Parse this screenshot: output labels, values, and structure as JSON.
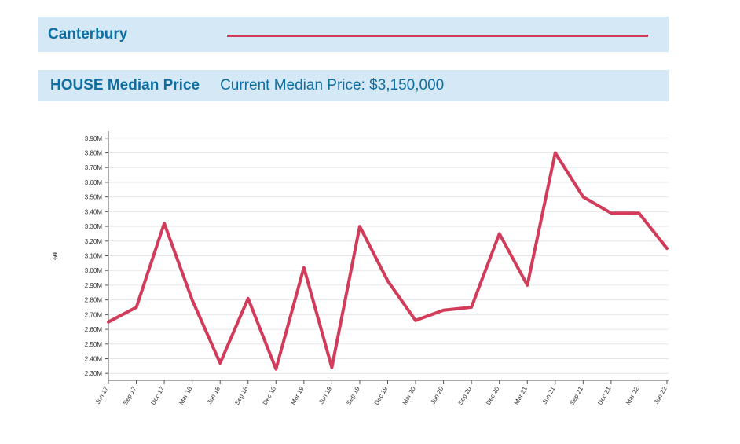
{
  "header": {
    "suburb": "Canterbury",
    "line_color": "#d23c5a"
  },
  "median_bar": {
    "label": "HOUSE Median Price",
    "current": "Current Median Price: $3,150,000"
  },
  "colors": {
    "band": "#d5e8f5",
    "title_text": "#0e6fa3",
    "series": "#d23c5a",
    "grid": "#e6e6e6"
  },
  "chart_data": {
    "type": "line",
    "ylabel": "$",
    "ylim": [
      2.25,
      3.92
    ],
    "y_ticks": [
      2.3,
      2.4,
      2.5,
      2.6,
      2.7,
      2.8,
      2.9,
      3.0,
      3.1,
      3.2,
      3.3,
      3.4,
      3.5,
      3.6,
      3.7,
      3.8,
      3.9
    ],
    "y_tick_labels": [
      "2.30M",
      "2.40M",
      "2.50M",
      "2.60M",
      "2.70M",
      "2.80M",
      "2.90M",
      "3.00M",
      "3.10M",
      "3.20M",
      "3.30M",
      "3.40M",
      "3.50M",
      "3.60M",
      "3.70M",
      "3.80M",
      "3.90M"
    ],
    "categories": [
      "Jun 17",
      "Sep 17",
      "Dec 17",
      "Mar 18",
      "Jun 18",
      "Sep 18",
      "Dec 18",
      "Mar 19",
      "Jun 19",
      "Sep 19",
      "Dec 19",
      "Mar 20",
      "Jun 20",
      "Sep 20",
      "Dec 20",
      "Mar 21",
      "Jun 21",
      "Sep 21",
      "Dec 21",
      "Mar 22",
      "Jun 22"
    ],
    "series": [
      {
        "values": [
          2.65,
          2.75,
          3.32,
          2.8,
          2.37,
          2.81,
          2.33,
          3.02,
          2.34,
          3.3,
          2.93,
          2.66,
          2.73,
          2.75,
          3.25,
          2.9,
          3.8,
          3.5,
          3.39,
          3.39,
          3.15
        ]
      }
    ],
    "grid": "horizontal",
    "legend": "none"
  }
}
